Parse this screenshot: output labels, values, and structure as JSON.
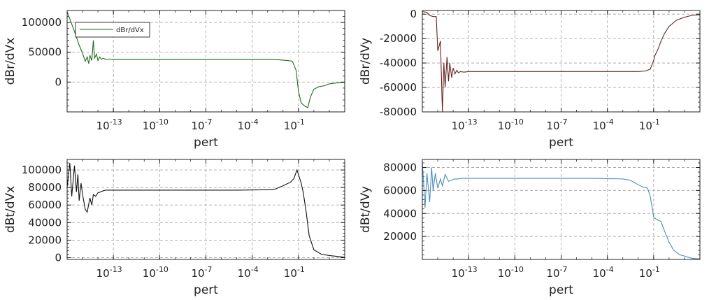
{
  "chart_data": [
    {
      "type": "line",
      "xscale": "log",
      "xlabel": "pert",
      "ylabel": "dBr/dVx",
      "color": "#1f6b1f",
      "legend": {
        "label": "dBr/dVx",
        "placement": "upper-left"
      },
      "xlim": [
        1e-16,
        100
      ],
      "ylim": [
        -50000,
        120000
      ],
      "xticks": [
        {
          "v": 1e-13,
          "base": "10",
          "exp": "-13"
        },
        {
          "v": 1e-10,
          "base": "10",
          "exp": "-10"
        },
        {
          "v": 1e-07,
          "base": "10",
          "exp": "-7"
        },
        {
          "v": 0.0001,
          "base": "10",
          "exp": "-4"
        },
        {
          "v": 0.1,
          "base": "10",
          "exp": "-1"
        }
      ],
      "yticks": [
        {
          "v": 100000,
          "label": "100000"
        },
        {
          "v": 50000,
          "label": "50000"
        },
        {
          "v": 0,
          "label": "0"
        }
      ],
      "x": [
        1e-16,
        3e-16,
        6e-16,
        1e-15,
        1.5e-15,
        2e-15,
        2.5e-15,
        3e-15,
        4e-15,
        5e-15,
        6e-15,
        8e-15,
        1e-14,
        1.3e-14,
        1.7e-14,
        2.2e-14,
        3e-14,
        5e-14,
        1e-13,
        1e-12,
        1e-10,
        1e-08,
        1e-06,
        0.0001,
        0.001,
        0.005,
        0.02,
        0.04,
        0.07,
        0.1,
        0.15,
        0.25,
        0.4,
        0.6,
        1,
        2,
        5,
        10,
        30,
        100
      ],
      "y": [
        118000,
        85000,
        62000,
        48000,
        35000,
        42000,
        31000,
        45000,
        36000,
        70000,
        40000,
        47000,
        36000,
        42000,
        38000,
        40000,
        38000,
        38500,
        38000,
        38000,
        38000,
        38000,
        38000,
        38000,
        38000,
        37500,
        36000,
        35000,
        20000,
        -15000,
        -35000,
        -40000,
        -43000,
        -25000,
        -12000,
        -8000,
        -6000,
        -3000,
        -1500,
        -500
      ]
    },
    {
      "type": "line",
      "xscale": "log",
      "xlabel": "pert",
      "ylabel": "dBr/dVy",
      "color": "#6b2222",
      "xlim": [
        1e-16,
        100
      ],
      "ylim": [
        -80000,
        3000
      ],
      "xticks": [
        {
          "v": 1e-13,
          "base": "10",
          "exp": "-13"
        },
        {
          "v": 1e-10,
          "base": "10",
          "exp": "-10"
        },
        {
          "v": 1e-07,
          "base": "10",
          "exp": "-7"
        },
        {
          "v": 0.0001,
          "base": "10",
          "exp": "-4"
        },
        {
          "v": 0.1,
          "base": "10",
          "exp": "-1"
        }
      ],
      "yticks": [
        {
          "v": 0,
          "label": "0"
        },
        {
          "v": -20000,
          "label": "-20000"
        },
        {
          "v": -40000,
          "label": "-40000"
        },
        {
          "v": -60000,
          "label": "-60000"
        },
        {
          "v": -80000,
          "label": "-80000"
        }
      ],
      "x": [
        1e-16,
        2e-16,
        3e-16,
        5e-16,
        8e-16,
        1e-15,
        1.5e-15,
        2e-15,
        2.5e-15,
        3e-15,
        4e-15,
        5e-15,
        6e-15,
        8e-15,
        1e-14,
        1.3e-14,
        1.7e-14,
        2.2e-14,
        3e-14,
        5e-14,
        1e-13,
        1e-12,
        1e-10,
        1e-08,
        1e-06,
        0.0001,
        0.001,
        0.01,
        0.03,
        0.06,
        0.1,
        0.12,
        0.2,
        0.3,
        0.5,
        1,
        3,
        10,
        30,
        100
      ],
      "y": [
        2000,
        1500,
        -1000,
        -2000,
        -2000,
        -30000,
        -22000,
        -80000,
        -40000,
        -60000,
        -35000,
        -55000,
        -40000,
        -52000,
        -44000,
        -49000,
        -46000,
        -48000,
        -47000,
        -47500,
        -47000,
        -47000,
        -47000,
        -47000,
        -47000,
        -47000,
        -47000,
        -47000,
        -46500,
        -45000,
        -38000,
        -34000,
        -28000,
        -22000,
        -16000,
        -10000,
        -5000,
        -2500,
        -1000,
        -500
      ]
    },
    {
      "type": "line",
      "xscale": "log",
      "xlabel": "pert",
      "ylabel": "dBt/dVx",
      "color": "#111111",
      "xlim": [
        1e-16,
        100
      ],
      "ylim": [
        -2000,
        112000
      ],
      "xticks": [
        {
          "v": 1e-13,
          "base": "10",
          "exp": "-13"
        },
        {
          "v": 1e-10,
          "base": "10",
          "exp": "-10"
        },
        {
          "v": 1e-07,
          "base": "10",
          "exp": "-7"
        },
        {
          "v": 0.0001,
          "base": "10",
          "exp": "-4"
        },
        {
          "v": 0.1,
          "base": "10",
          "exp": "-1"
        }
      ],
      "yticks": [
        {
          "v": 100000,
          "label": "100000"
        },
        {
          "v": 80000,
          "label": "80000"
        },
        {
          "v": 60000,
          "label": "60000"
        },
        {
          "v": 40000,
          "label": "40000"
        },
        {
          "v": 20000,
          "label": "20000"
        },
        {
          "v": 0,
          "label": "0"
        }
      ],
      "x": [
        1e-16,
        1.5e-16,
        2e-16,
        3e-16,
        4e-16,
        5e-16,
        6e-16,
        8e-16,
        1e-15,
        1.5e-15,
        2e-15,
        3e-15,
        4e-15,
        5e-15,
        7e-15,
        1e-14,
        1.5e-14,
        2e-14,
        3e-14,
        5e-14,
        1e-13,
        1e-11,
        1e-09,
        1e-07,
        1e-05,
        0.001,
        0.003,
        0.01,
        0.03,
        0.05,
        0.08,
        0.1,
        0.15,
        0.2,
        0.3,
        0.5,
        1,
        3,
        10,
        30,
        100
      ],
      "y": [
        80000,
        108000,
        70000,
        105000,
        75000,
        95000,
        65000,
        85000,
        72000,
        55000,
        52000,
        68000,
        60000,
        72000,
        70000,
        74000,
        75000,
        76000,
        77000,
        77000,
        77000,
        77000,
        77000,
        77000,
        77000,
        77500,
        78000,
        82000,
        86000,
        90000,
        100000,
        95000,
        85000,
        75000,
        55000,
        25000,
        9000,
        4000,
        2500,
        1500,
        500
      ]
    },
    {
      "type": "line",
      "xscale": "log",
      "xlabel": "pert",
      "ylabel": "dBt/dVy",
      "color": "#4a8bc2",
      "xlim": [
        1e-16,
        100
      ],
      "ylim": [
        0,
        87000
      ],
      "xticks": [
        {
          "v": 1e-13,
          "base": "10",
          "exp": "-13"
        },
        {
          "v": 1e-10,
          "base": "10",
          "exp": "-10"
        },
        {
          "v": 1e-07,
          "base": "10",
          "exp": "-7"
        },
        {
          "v": 0.0001,
          "base": "10",
          "exp": "-4"
        },
        {
          "v": 0.1,
          "base": "10",
          "exp": "-1"
        }
      ],
      "yticks": [
        {
          "v": 80000,
          "label": "80000"
        },
        {
          "v": 60000,
          "label": "60000"
        },
        {
          "v": 40000,
          "label": "40000"
        },
        {
          "v": 20000,
          "label": "20000"
        }
      ],
      "x": [
        1e-16,
        1.5e-16,
        2e-16,
        3e-16,
        4e-16,
        5e-16,
        7e-16,
        1e-15,
        1.5e-15,
        2e-15,
        3e-15,
        5e-15,
        8e-15,
        1.2e-14,
        2e-14,
        3e-14,
        5e-14,
        1e-13,
        1e-11,
        1e-09,
        1e-07,
        1e-05,
        0.001,
        0.003,
        0.01,
        0.02,
        0.04,
        0.06,
        0.08,
        0.1,
        0.15,
        0.3,
        0.5,
        1,
        2,
        5,
        10,
        30,
        100
      ],
      "y": [
        85000,
        45000,
        75000,
        50000,
        80000,
        60000,
        75000,
        62000,
        70000,
        64000,
        74000,
        68000,
        69000,
        70000,
        70000,
        70500,
        70500,
        70500,
        70500,
        70500,
        70500,
        70500,
        70000,
        69000,
        65000,
        63000,
        62000,
        55000,
        45000,
        37000,
        35000,
        33000,
        25000,
        15000,
        8000,
        4000,
        3000,
        1000,
        500
      ]
    }
  ]
}
